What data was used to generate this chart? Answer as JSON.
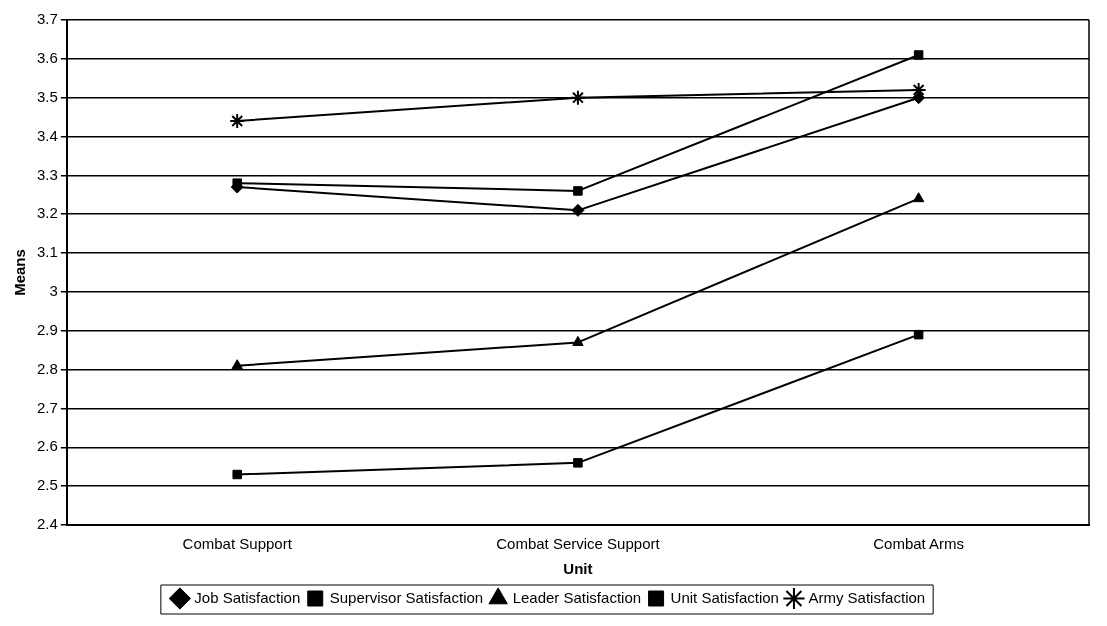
{
  "chart_data": {
    "type": "line",
    "xlabel": "Unit",
    "ylabel": "Means",
    "categories": [
      "Combat Support",
      "Combat Service Support",
      "Combat Arms"
    ],
    "series": [
      {
        "name": "Job Satisfaction",
        "color": "#000000",
        "marker": "diamond",
        "values": [
          3.27,
          3.21,
          3.5
        ]
      },
      {
        "name": "Supervisor Satisfaction",
        "color": "#000000",
        "marker": "square",
        "values": [
          3.28,
          3.26,
          3.61
        ]
      },
      {
        "name": "Leader Satisfaction",
        "color": "#000000",
        "marker": "triangle",
        "values": [
          2.81,
          2.87,
          3.24
        ]
      },
      {
        "name": "Unit Satisfaction",
        "color": "#000000",
        "marker": "square",
        "values": [
          2.53,
          2.56,
          2.89
        ]
      },
      {
        "name": "Army Satisfaction",
        "color": "#000000",
        "marker": "cross",
        "values": [
          3.44,
          3.5,
          3.52
        ]
      }
    ],
    "ylim": [
      2.4,
      3.7
    ],
    "yticks": [
      2.4,
      2.5,
      2.6,
      2.7,
      2.8,
      2.9,
      3,
      3.1,
      3.2,
      3.3,
      3.4,
      3.5,
      3.6,
      3.7
    ],
    "grid": "y",
    "legend": "bottom",
    "line_style": "solid"
  }
}
